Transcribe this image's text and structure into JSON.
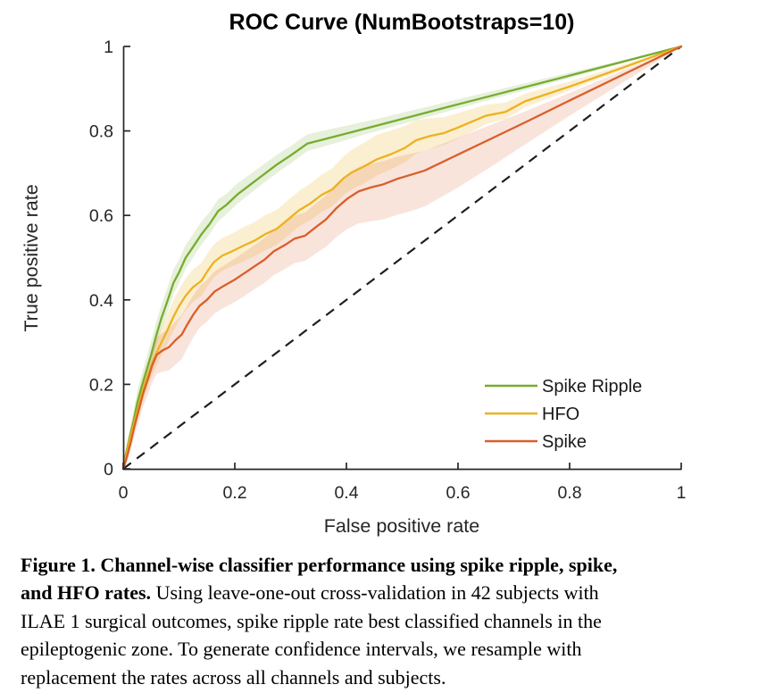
{
  "chart": {
    "title": "ROC Curve (NumBootstraps=10)",
    "xlabel": "False positive rate",
    "ylabel": "True positive rate"
  },
  "chart_data": {
    "type": "line",
    "title": "ROC Curve (NumBootstraps=10)",
    "xlabel": "False positive rate",
    "ylabel": "True positive rate",
    "xlim": [
      0,
      1
    ],
    "ylim": [
      0,
      1
    ],
    "grid": false,
    "ticks": {
      "x": [
        "0",
        "0.2",
        "0.4",
        "0.6",
        "0.8",
        "1"
      ],
      "y": [
        "0",
        "0.2",
        "0.4",
        "0.6",
        "0.8",
        "1"
      ],
      "x_values": [
        0,
        0.2,
        0.4,
        0.6,
        0.8,
        1
      ],
      "y_values": [
        0,
        0.2,
        0.4,
        0.6,
        0.8,
        1
      ]
    },
    "legend": {
      "position": "bottom-right",
      "entries": [
        "Spike Ripple",
        "HFO",
        "Spike"
      ]
    },
    "reference_line": {
      "name": "chance-diagonal",
      "style": "dashed",
      "color": "#1f1f1f",
      "from": [
        0,
        0
      ],
      "to": [
        1,
        1
      ]
    },
    "axis_color": "#262626",
    "point_format": [
      "fpr",
      "tpr",
      "ci_above",
      "ci_below"
    ],
    "series": [
      {
        "name": "Spike Ripple",
        "color": "#77ac30",
        "band_opacity": 0.18,
        "points": [
          [
            0,
            0,
            0,
            0
          ],
          [
            0.004,
            0.03,
            0.012,
            0.008
          ],
          [
            0.01,
            0.065,
            0.02,
            0.015
          ],
          [
            0.018,
            0.11,
            0.025,
            0.02
          ],
          [
            0.025,
            0.155,
            0.028,
            0.022
          ],
          [
            0.032,
            0.19,
            0.03,
            0.024
          ],
          [
            0.04,
            0.225,
            0.03,
            0.025
          ],
          [
            0.05,
            0.27,
            0.032,
            0.026
          ],
          [
            0.058,
            0.31,
            0.032,
            0.026
          ],
          [
            0.068,
            0.355,
            0.032,
            0.026
          ],
          [
            0.08,
            0.4,
            0.032,
            0.027
          ],
          [
            0.09,
            0.44,
            0.032,
            0.027
          ],
          [
            0.1,
            0.465,
            0.03,
            0.026
          ],
          [
            0.112,
            0.5,
            0.03,
            0.026
          ],
          [
            0.125,
            0.525,
            0.03,
            0.025
          ],
          [
            0.14,
            0.555,
            0.03,
            0.025
          ],
          [
            0.155,
            0.58,
            0.028,
            0.024
          ],
          [
            0.17,
            0.61,
            0.028,
            0.024
          ],
          [
            0.185,
            0.625,
            0.026,
            0.022
          ],
          [
            0.205,
            0.65,
            0.026,
            0.022
          ],
          [
            0.225,
            0.67,
            0.025,
            0.021
          ],
          [
            0.25,
            0.695,
            0.024,
            0.02
          ],
          [
            0.275,
            0.72,
            0.023,
            0.02
          ],
          [
            0.3,
            0.742,
            0.022,
            0.019
          ],
          [
            0.33,
            0.77,
            0.022,
            0.018
          ],
          [
            0.45,
            0.811,
            0.016,
            0.013
          ],
          [
            0.6,
            0.863,
            0.012,
            0.01
          ],
          [
            0.8,
            0.931,
            0.007,
            0.006
          ],
          [
            1,
            1,
            0,
            0
          ]
        ]
      },
      {
        "name": "HFO",
        "color": "#edb120",
        "band_opacity": 0.2,
        "points": [
          [
            0,
            0,
            0,
            0
          ],
          [
            0.005,
            0.03,
            0.012,
            0.01
          ],
          [
            0.012,
            0.07,
            0.02,
            0.015
          ],
          [
            0.02,
            0.11,
            0.025,
            0.02
          ],
          [
            0.028,
            0.15,
            0.03,
            0.024
          ],
          [
            0.036,
            0.19,
            0.032,
            0.026
          ],
          [
            0.045,
            0.225,
            0.034,
            0.028
          ],
          [
            0.055,
            0.26,
            0.035,
            0.03
          ],
          [
            0.065,
            0.29,
            0.036,
            0.03
          ],
          [
            0.078,
            0.325,
            0.038,
            0.032
          ],
          [
            0.09,
            0.36,
            0.04,
            0.034
          ],
          [
            0.1,
            0.385,
            0.04,
            0.034
          ],
          [
            0.112,
            0.41,
            0.042,
            0.035
          ],
          [
            0.125,
            0.43,
            0.042,
            0.035
          ],
          [
            0.14,
            0.445,
            0.042,
            0.036
          ],
          [
            0.152,
            0.47,
            0.042,
            0.036
          ],
          [
            0.163,
            0.49,
            0.042,
            0.036
          ],
          [
            0.178,
            0.505,
            0.042,
            0.036
          ],
          [
            0.195,
            0.515,
            0.042,
            0.036
          ],
          [
            0.215,
            0.528,
            0.044,
            0.037
          ],
          [
            0.235,
            0.54,
            0.044,
            0.037
          ],
          [
            0.255,
            0.556,
            0.045,
            0.038
          ],
          [
            0.275,
            0.568,
            0.045,
            0.038
          ],
          [
            0.295,
            0.59,
            0.046,
            0.038
          ],
          [
            0.315,
            0.612,
            0.046,
            0.038
          ],
          [
            0.335,
            0.628,
            0.047,
            0.04
          ],
          [
            0.355,
            0.648,
            0.048,
            0.04
          ],
          [
            0.375,
            0.662,
            0.05,
            0.04
          ],
          [
            0.395,
            0.688,
            0.052,
            0.04
          ],
          [
            0.41,
            0.702,
            0.054,
            0.04
          ],
          [
            0.43,
            0.715,
            0.056,
            0.04
          ],
          [
            0.455,
            0.733,
            0.058,
            0.038
          ],
          [
            0.48,
            0.745,
            0.056,
            0.036
          ],
          [
            0.505,
            0.76,
            0.052,
            0.034
          ],
          [
            0.525,
            0.778,
            0.048,
            0.032
          ],
          [
            0.55,
            0.788,
            0.042,
            0.03
          ],
          [
            0.575,
            0.795,
            0.038,
            0.028
          ],
          [
            0.6,
            0.808,
            0.034,
            0.026
          ],
          [
            0.625,
            0.822,
            0.03,
            0.024
          ],
          [
            0.65,
            0.836,
            0.026,
            0.02
          ],
          [
            0.685,
            0.845,
            0.022,
            0.017
          ],
          [
            0.72,
            0.87,
            0.018,
            0.014
          ],
          [
            0.8,
            0.905,
            0.012,
            0.009
          ],
          [
            0.9,
            0.952,
            0.006,
            0.005
          ],
          [
            1,
            1,
            0,
            0
          ]
        ]
      },
      {
        "name": "Spike",
        "color": "#d95f2b",
        "band_opacity": 0.17,
        "points": [
          [
            0,
            0,
            0,
            0
          ],
          [
            0.006,
            0.025,
            0.012,
            0.01
          ],
          [
            0.013,
            0.06,
            0.02,
            0.018
          ],
          [
            0.02,
            0.1,
            0.026,
            0.024
          ],
          [
            0.028,
            0.14,
            0.03,
            0.028
          ],
          [
            0.036,
            0.18,
            0.034,
            0.032
          ],
          [
            0.045,
            0.215,
            0.036,
            0.036
          ],
          [
            0.052,
            0.245,
            0.038,
            0.04
          ],
          [
            0.06,
            0.27,
            0.04,
            0.045
          ],
          [
            0.07,
            0.28,
            0.042,
            0.05
          ],
          [
            0.082,
            0.288,
            0.044,
            0.055
          ],
          [
            0.094,
            0.305,
            0.045,
            0.058
          ],
          [
            0.105,
            0.318,
            0.046,
            0.058
          ],
          [
            0.115,
            0.342,
            0.046,
            0.056
          ],
          [
            0.126,
            0.366,
            0.046,
            0.054
          ],
          [
            0.137,
            0.386,
            0.046,
            0.052
          ],
          [
            0.15,
            0.4,
            0.047,
            0.052
          ],
          [
            0.164,
            0.42,
            0.048,
            0.052
          ],
          [
            0.18,
            0.433,
            0.048,
            0.052
          ],
          [
            0.2,
            0.448,
            0.05,
            0.053
          ],
          [
            0.218,
            0.464,
            0.05,
            0.054
          ],
          [
            0.236,
            0.48,
            0.05,
            0.054
          ],
          [
            0.253,
            0.495,
            0.051,
            0.055
          ],
          [
            0.27,
            0.515,
            0.052,
            0.056
          ],
          [
            0.29,
            0.53,
            0.053,
            0.057
          ],
          [
            0.307,
            0.545,
            0.054,
            0.058
          ],
          [
            0.326,
            0.552,
            0.055,
            0.06
          ],
          [
            0.345,
            0.572,
            0.056,
            0.062
          ],
          [
            0.363,
            0.59,
            0.057,
            0.065
          ],
          [
            0.382,
            0.617,
            0.058,
            0.068
          ],
          [
            0.402,
            0.64,
            0.058,
            0.072
          ],
          [
            0.422,
            0.657,
            0.057,
            0.076
          ],
          [
            0.443,
            0.666,
            0.056,
            0.08
          ],
          [
            0.465,
            0.673,
            0.055,
            0.083
          ],
          [
            0.49,
            0.686,
            0.053,
            0.085
          ],
          [
            0.515,
            0.696,
            0.05,
            0.086
          ],
          [
            0.54,
            0.706,
            0.047,
            0.085
          ],
          [
            0.6,
            0.744,
            0.04,
            0.078
          ],
          [
            0.66,
            0.782,
            0.033,
            0.066
          ],
          [
            0.72,
            0.82,
            0.026,
            0.052
          ],
          [
            0.8,
            0.872,
            0.018,
            0.036
          ],
          [
            0.9,
            0.936,
            0.009,
            0.018
          ],
          [
            1,
            1,
            0,
            0
          ]
        ]
      }
    ]
  },
  "legend": {
    "items": [
      {
        "label": "Spike Ripple",
        "color": "#77ac30"
      },
      {
        "label": "HFO",
        "color": "#edb120"
      },
      {
        "label": "Spike",
        "color": "#d95f2b"
      }
    ]
  },
  "caption": {
    "lines": [
      {
        "bold": "Figure 1. Channel-wise classifier performance using spike ripple, spike,",
        "normal": ""
      },
      {
        "bold": "and HFO rates.",
        "normal": " Using leave-one-out cross-validation in 42 subjects with"
      },
      {
        "bold": "",
        "normal": "ILAE 1 surgical outcomes, spike ripple rate best classified channels in the"
      },
      {
        "bold": "",
        "normal": "epileptogenic zone. To generate confidence intervals, we resample with"
      },
      {
        "bold": "",
        "normal": "replacement the rates across all channels and subjects."
      }
    ]
  }
}
